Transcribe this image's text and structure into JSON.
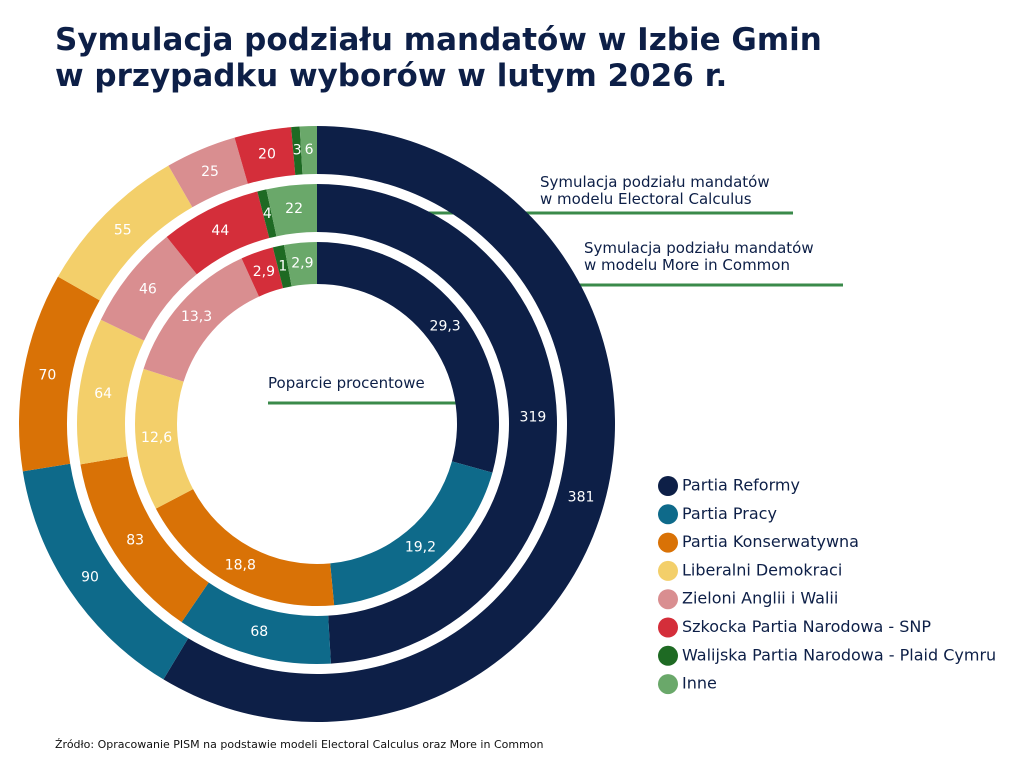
{
  "chart_data": {
    "type": "donut",
    "title": "Symulacja podziału mandatów w Izbie Gmin\nw przypadku wyborów w lutym 2026 r.",
    "categories": [
      "Partia Reformy",
      "Partia Pracy",
      "Partia Konserwatywna",
      "Liberalni Demokraci",
      "Zieloni Anglii i Walii",
      "Szkocka Partia Narodowa - SNP",
      "Walijska Partia Narodowa - Plaid Cymru",
      "Inne"
    ],
    "colors": [
      "#0d1f47",
      "#0e6a8a",
      "#d97206",
      "#f3cf6a",
      "#d98e90",
      "#d42e3a",
      "#1e6a23",
      "#6aa86a"
    ],
    "series": [
      {
        "name": "Symulacja podziału mandatów\nw modelu Electoral Calculus",
        "values": [
          381,
          90,
          70,
          55,
          25,
          20,
          3,
          6
        ]
      },
      {
        "name": "Symulacja podziału mandatów\nw modelu More in Common",
        "values": [
          319,
          68,
          83,
          64,
          46,
          44,
          4,
          22
        ]
      },
      {
        "name": "Poparcie procentowe",
        "values": [
          29.3,
          19.2,
          18.8,
          12.6,
          13.3,
          2.9,
          1,
          2.9
        ],
        "value_labels": [
          "29,3",
          "19,2",
          "18,8",
          "12,6",
          "13,3",
          "2,9",
          "1",
          "2,9"
        ]
      }
    ],
    "source": "Źródło: Opracowanie PISM na podstawie modeli Electoral Calculus oraz More in Common"
  }
}
